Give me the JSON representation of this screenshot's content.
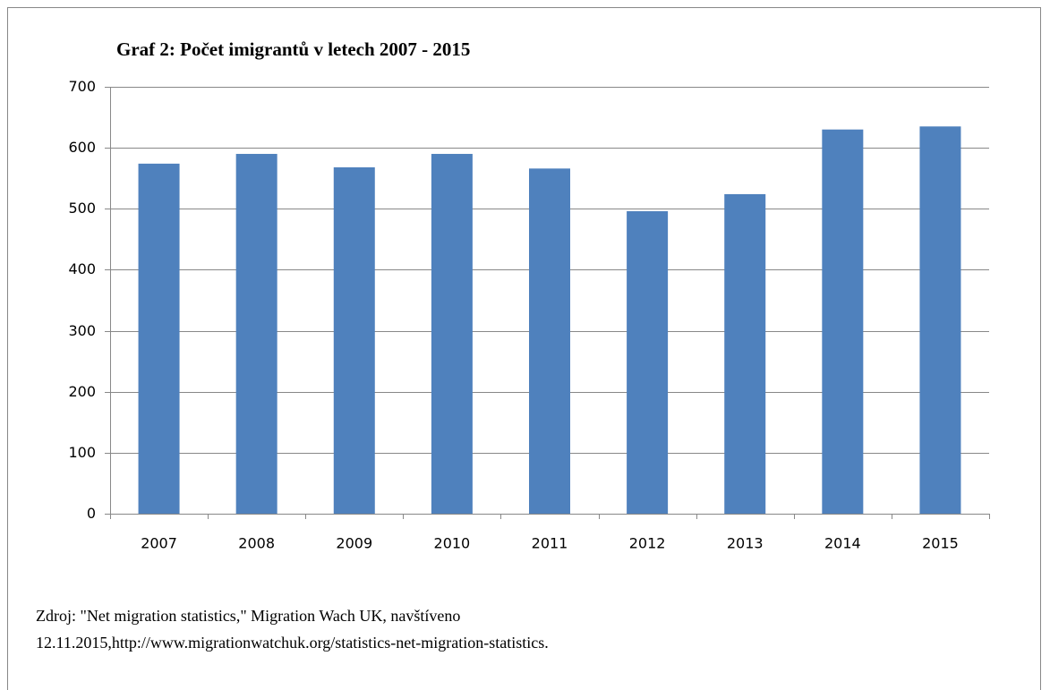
{
  "chart_data": {
    "type": "bar",
    "title": "Graf 2: Počet imigrantů v letech 2007 - 2015",
    "categories": [
      "2007",
      "2008",
      "2009",
      "2010",
      "2011",
      "2012",
      "2013",
      "2014",
      "2015"
    ],
    "values": [
      574,
      590,
      568,
      590,
      566,
      496,
      524,
      630,
      635
    ],
    "color": "#4f81bd",
    "ylim": [
      0,
      700
    ],
    "yticks": [
      0,
      100,
      200,
      300,
      400,
      500,
      600,
      700
    ],
    "grid": true,
    "source": [
      "Zdroj: \"Net migration statistics,\" Migration Wach UK, navštíveno",
      "12.11.2015,http://www.migrationwatchuk.org/statistics-net-migration-statistics."
    ]
  }
}
